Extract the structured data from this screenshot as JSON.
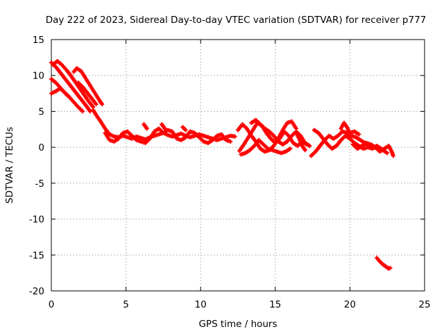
{
  "chart_data": {
    "type": "scatter",
    "title": "Day 222 of 2023, Sidereal Day-to-day VTEC variation (SDTVAR) for receiver p777",
    "xlabel": "GPS time / hours",
    "ylabel": "SDTVAR / TECUs",
    "xlim": [
      0,
      25
    ],
    "ylim": [
      -20,
      15
    ],
    "xticks": [
      0,
      5,
      10,
      15,
      20,
      25
    ],
    "yticks": [
      -20,
      -15,
      -10,
      -5,
      0,
      5,
      10,
      15
    ],
    "grid": true,
    "marker": "+",
    "color": "#ff0000",
    "series": [
      {
        "name": "p777 SDTVAR",
        "tracks": [
          [
            [
              0.0,
              11.8
            ],
            [
              0.3,
              11.2
            ],
            [
              0.6,
              10.4
            ],
            [
              0.9,
              9.6
            ],
            [
              1.2,
              8.8
            ],
            [
              1.5,
              8.0
            ],
            [
              1.8,
              7.2
            ],
            [
              2.1,
              6.4
            ],
            [
              2.4,
              5.6
            ],
            [
              2.6,
              5.0
            ]
          ],
          [
            [
              0.0,
              9.5
            ],
            [
              0.3,
              9.0
            ],
            [
              0.6,
              8.3
            ],
            [
              0.9,
              7.6
            ],
            [
              1.2,
              7.0
            ],
            [
              1.5,
              6.3
            ],
            [
              1.8,
              5.6
            ],
            [
              2.1,
              5.0
            ]
          ],
          [
            [
              0.0,
              7.5
            ],
            [
              0.3,
              7.8
            ],
            [
              0.6,
              8.2
            ],
            [
              0.9,
              7.6
            ],
            [
              1.1,
              7.2
            ]
          ],
          [
            [
              0.1,
              11.5
            ],
            [
              0.4,
              12.0
            ],
            [
              0.7,
              11.5
            ],
            [
              1.0,
              10.8
            ],
            [
              1.3,
              10.0
            ],
            [
              1.6,
              9.1
            ],
            [
              1.9,
              8.2
            ],
            [
              2.2,
              7.3
            ],
            [
              2.5,
              6.4
            ],
            [
              2.8,
              5.6
            ]
          ],
          [
            [
              1.5,
              10.5
            ],
            [
              1.7,
              11.0
            ],
            [
              2.0,
              10.6
            ],
            [
              2.3,
              9.6
            ],
            [
              2.6,
              8.6
            ],
            [
              2.9,
              7.6
            ],
            [
              3.2,
              6.6
            ],
            [
              3.4,
              6.0
            ]
          ],
          [
            [
              1.8,
              9.0
            ],
            [
              2.1,
              8.4
            ],
            [
              2.4,
              7.6
            ],
            [
              2.7,
              6.8
            ],
            [
              3.0,
              6.0
            ]
          ],
          [
            [
              2.8,
              5.2
            ],
            [
              3.0,
              4.5
            ],
            [
              3.3,
              3.6
            ],
            [
              3.6,
              2.6
            ],
            [
              3.9,
              1.8
            ],
            [
              4.2,
              1.5
            ],
            [
              4.5,
              1.4
            ],
            [
              4.8,
              1.6
            ],
            [
              5.1,
              1.4
            ],
            [
              5.4,
              1.2
            ],
            [
              5.7,
              1.5
            ],
            [
              6.0,
              1.3
            ],
            [
              6.3,
              1.1
            ],
            [
              6.6,
              1.4
            ],
            [
              6.9,
              1.6
            ],
            [
              7.2,
              1.8
            ],
            [
              7.5,
              2.0
            ],
            [
              7.8,
              1.7
            ],
            [
              8.1,
              1.5
            ],
            [
              8.4,
              1.7
            ],
            [
              8.7,
              1.9
            ],
            [
              9.0,
              1.6
            ],
            [
              9.3,
              1.4
            ],
            [
              9.6,
              1.6
            ],
            [
              9.9,
              1.8
            ],
            [
              10.2,
              1.6
            ],
            [
              10.5,
              1.4
            ],
            [
              10.8,
              1.2
            ],
            [
              11.1,
              1.0
            ],
            [
              11.4,
              1.2
            ],
            [
              11.7,
              1.4
            ],
            [
              12.0,
              1.6
            ],
            [
              12.3,
              1.5
            ]
          ],
          [
            [
              3.6,
              2.0
            ],
            [
              3.9,
              1.0
            ],
            [
              4.2,
              0.8
            ],
            [
              4.5,
              1.2
            ],
            [
              4.8,
              2.0
            ],
            [
              5.1,
              2.2
            ],
            [
              5.4,
              1.6
            ],
            [
              5.7,
              1.0
            ],
            [
              6.0,
              0.8
            ],
            [
              6.3,
              0.6
            ],
            [
              6.6,
              1.2
            ],
            [
              6.9,
              2.2
            ],
            [
              7.2,
              2.6
            ],
            [
              7.5,
              2.0
            ],
            [
              7.8,
              2.4
            ],
            [
              8.1,
              2.2
            ],
            [
              8.4,
              1.2
            ],
            [
              8.7,
              1.0
            ],
            [
              9.0,
              1.4
            ],
            [
              9.3,
              2.2
            ],
            [
              9.6,
              2.0
            ],
            [
              9.9,
              1.4
            ],
            [
              10.2,
              0.8
            ],
            [
              10.5,
              0.6
            ],
            [
              10.8,
              1.0
            ],
            [
              11.1,
              1.6
            ],
            [
              11.4,
              1.8
            ],
            [
              11.7,
              1.0
            ],
            [
              12.0,
              0.8
            ]
          ],
          [
            [
              6.2,
              3.2
            ],
            [
              6.4,
              2.6
            ]
          ],
          [
            [
              7.4,
              3.2
            ],
            [
              7.6,
              2.6
            ]
          ],
          [
            [
              8.8,
              2.8
            ],
            [
              9.0,
              2.4
            ]
          ],
          [
            [
              12.6,
              -0.5
            ],
            [
              12.9,
              0.4
            ],
            [
              13.2,
              1.4
            ],
            [
              13.5,
              2.4
            ],
            [
              13.8,
              3.4
            ],
            [
              14.1,
              3.0
            ],
            [
              14.4,
              2.0
            ],
            [
              14.7,
              1.2
            ],
            [
              15.0,
              0.6
            ],
            [
              15.3,
              1.2
            ],
            [
              15.6,
              2.2
            ],
            [
              15.9,
              1.6
            ],
            [
              16.2,
              0.6
            ],
            [
              16.5,
              0.2
            ],
            [
              16.8,
              0.8
            ],
            [
              17.1,
              0.4
            ]
          ],
          [
            [
              12.5,
              2.4
            ],
            [
              12.8,
              3.2
            ],
            [
              13.1,
              2.6
            ],
            [
              13.4,
              1.6
            ],
            [
              13.7,
              0.8
            ],
            [
              14.0,
              -0.2
            ],
            [
              14.3,
              -0.6
            ],
            [
              14.6,
              -0.4
            ],
            [
              14.9,
              0.2
            ],
            [
              15.2,
              1.2
            ],
            [
              15.5,
              2.4
            ],
            [
              15.8,
              3.4
            ],
            [
              16.1,
              3.6
            ],
            [
              16.4,
              2.6
            ]
          ],
          [
            [
              12.7,
              -1.0
            ],
            [
              13.0,
              -0.8
            ],
            [
              13.3,
              -0.4
            ],
            [
              13.6,
              0.2
            ],
            [
              13.9,
              1.0
            ],
            [
              14.2,
              0.4
            ],
            [
              14.5,
              -0.2
            ],
            [
              14.8,
              -0.4
            ],
            [
              15.1,
              -0.6
            ],
            [
              15.4,
              -0.8
            ],
            [
              15.7,
              -0.6
            ],
            [
              16.0,
              -0.2
            ]
          ],
          [
            [
              13.4,
              3.4
            ],
            [
              13.7,
              3.8
            ],
            [
              14.0,
              3.2
            ],
            [
              14.3,
              2.6
            ],
            [
              14.6,
              2.2
            ],
            [
              14.9,
              1.6
            ],
            [
              15.2,
              0.8
            ],
            [
              15.5,
              0.4
            ],
            [
              15.8,
              0.8
            ],
            [
              16.1,
              1.6
            ],
            [
              16.4,
              2.2
            ],
            [
              16.7,
              1.6
            ],
            [
              17.0,
              0.6
            ],
            [
              17.3,
              0.2
            ]
          ],
          [
            [
              16.4,
              2.0
            ],
            [
              16.6,
              1.2
            ],
            [
              16.8,
              0.2
            ],
            [
              17.0,
              -0.4
            ]
          ],
          [
            [
              17.4,
              -1.2
            ],
            [
              17.7,
              -0.6
            ],
            [
              18.0,
              0.2
            ],
            [
              18.3,
              1.0
            ],
            [
              18.6,
              1.6
            ],
            [
              18.9,
              1.2
            ],
            [
              19.2,
              1.6
            ],
            [
              19.5,
              2.2
            ],
            [
              19.8,
              2.0
            ],
            [
              20.1,
              1.6
            ],
            [
              20.4,
              1.4
            ],
            [
              20.7,
              1.0
            ],
            [
              21.0,
              0.6
            ],
            [
              21.3,
              0.2
            ],
            [
              21.6,
              0.0
            ],
            [
              21.9,
              -0.2
            ],
            [
              22.2,
              -0.4
            ],
            [
              22.5,
              -0.8
            ]
          ],
          [
            [
              17.6,
              2.4
            ],
            [
              17.9,
              2.0
            ],
            [
              18.2,
              1.2
            ],
            [
              18.5,
              0.4
            ],
            [
              18.8,
              -0.2
            ],
            [
              19.1,
              0.2
            ],
            [
              19.4,
              1.0
            ],
            [
              19.7,
              1.6
            ],
            [
              20.0,
              1.2
            ],
            [
              20.3,
              0.6
            ],
            [
              20.6,
              0.2
            ],
            [
              20.9,
              -0.2
            ],
            [
              21.2,
              0.0
            ],
            [
              21.5,
              -0.2
            ],
            [
              21.8,
              0.2
            ],
            [
              22.1,
              -0.2
            ]
          ],
          [
            [
              19.4,
              2.6
            ],
            [
              19.6,
              3.4
            ],
            [
              19.8,
              2.8
            ],
            [
              20.0,
              2.0
            ],
            [
              20.3,
              2.2
            ],
            [
              20.6,
              1.8
            ]
          ],
          [
            [
              20.2,
              0.4
            ],
            [
              20.5,
              -0.2
            ],
            [
              20.8,
              0.2
            ],
            [
              21.1,
              0.6
            ],
            [
              21.4,
              0.4
            ],
            [
              21.7,
              0.0
            ],
            [
              22.0,
              -0.6
            ],
            [
              22.3,
              -0.2
            ],
            [
              22.6,
              0.2
            ],
            [
              22.8,
              -0.6
            ],
            [
              22.9,
              -1.2
            ]
          ],
          [
            [
              21.8,
              -15.4
            ],
            [
              22.0,
              -15.9
            ],
            [
              22.2,
              -16.3
            ],
            [
              22.4,
              -16.6
            ],
            [
              22.6,
              -16.9
            ],
            [
              22.7,
              -16.8
            ]
          ]
        ]
      }
    ]
  }
}
